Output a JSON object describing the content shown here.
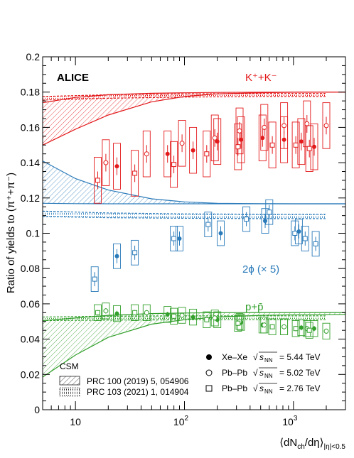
{
  "chart_data": {
    "type": "scatter",
    "experiment": "ALICE",
    "ylabel": "Ratio of yields to (π⁺+π⁻)",
    "xlabel_main": "⟨dN",
    "xlabel_sub1": "ch",
    "xlabel_mid": "/dη⟩",
    "xlabel_sub2": "|η|<0.5",
    "xscale": "log",
    "xlim": [
      5,
      3000
    ],
    "ylim": [
      0,
      0.2
    ],
    "xticks": [
      {
        "value": 10,
        "base": "10",
        "exp": ""
      },
      {
        "value": 100,
        "base": "10",
        "exp": "2"
      },
      {
        "value": 1000,
        "base": "10",
        "exp": "3"
      }
    ],
    "yticks": [
      "0",
      "0.02",
      "0.04",
      "0.06",
      "0.08",
      "0.1",
      "0.12",
      "0.14",
      "0.16",
      "0.18",
      "0.2"
    ],
    "colors": {
      "kaon": "#e31a1c",
      "phi": "#2b7bba",
      "proton": "#33a02c"
    },
    "species_labels": [
      {
        "id": "kaon",
        "text": "K⁺+K⁻"
      },
      {
        "id": "phi",
        "text": "2ϕ (× 5)"
      },
      {
        "id": "proton",
        "text": "p+p̄"
      }
    ],
    "legend": {
      "model_title": "CSM",
      "models": [
        {
          "label": "PRC 100 (2019) 5, 054906",
          "fill": "hatched"
        },
        {
          "label": "PRC 103 (2021) 1, 014904",
          "fill": "dotted"
        }
      ],
      "systems": [
        {
          "system": "Xe–Xe",
          "energy": "= 5.44 TeV",
          "marker": "filled-circle"
        },
        {
          "system": "Pb–Pb",
          "energy": "= 5.02 TeV",
          "marker": "open-circle"
        },
        {
          "system": "Pb–Pb",
          "energy": "= 2.76 TeV",
          "marker": "open-square"
        }
      ],
      "sqrt_label": "s",
      "sqrt_sub": "NN"
    },
    "series": [
      {
        "species": "kaon",
        "system": "Xe-Xe 5.44 TeV",
        "marker": "filled-circle",
        "x": [
          24,
          70,
          120,
          200,
          330,
          520,
          820,
          1180,
          1550
        ],
        "y": [
          0.138,
          0.145,
          0.147,
          0.152,
          0.153,
          0.154,
          0.153,
          0.152,
          0.149
        ]
      },
      {
        "species": "kaon",
        "system": "Pb-Pb 5.02 TeV",
        "marker": "open-circle",
        "x": [
          19,
          45,
          95,
          190,
          320,
          540,
          820,
          1330,
          2000
        ],
        "y": [
          0.14,
          0.145,
          0.151,
          0.154,
          0.158,
          0.16,
          0.161,
          0.162,
          0.161
        ]
      },
      {
        "species": "kaon",
        "system": "Pb-Pb 2.76 TeV",
        "marker": "open-square",
        "x": [
          16,
          35,
          80,
          160,
          310,
          640,
          1050,
          1400
        ],
        "y": [
          0.13,
          0.134,
          0.139,
          0.145,
          0.149,
          0.15,
          0.15,
          0.148
        ]
      },
      {
        "species": "phi",
        "system": "Xe-Xe 5.44 TeV",
        "marker": "filled-circle",
        "x": [
          24,
          90,
          215,
          550,
          1120
        ],
        "y": [
          0.087,
          0.097,
          0.1,
          0.107,
          0.101
        ]
      },
      {
        "species": "phi",
        "system": "Pb-Pb 2.76 TeV",
        "marker": "open-square",
        "x": [
          15,
          35,
          80,
          165,
          370,
          600,
          1030,
          1280,
          1600
        ],
        "y": [
          0.074,
          0.089,
          0.097,
          0.105,
          0.108,
          0.112,
          0.1,
          0.097,
          0.094
        ]
      },
      {
        "species": "proton",
        "system": "Xe-Xe 5.44 TeV",
        "marker": "filled-circle",
        "x": [
          24,
          70,
          120,
          200,
          330,
          520,
          820,
          1180,
          1550
        ],
        "y": [
          0.0545,
          0.054,
          0.0525,
          0.051,
          0.0495,
          0.048,
          0.047,
          0.0465,
          0.046
        ]
      },
      {
        "species": "proton",
        "system": "Pb-Pb 5.02 TeV",
        "marker": "open-circle",
        "x": [
          19,
          45,
          95,
          190,
          320,
          540,
          820,
          1330,
          2000
        ],
        "y": [
          0.056,
          0.055,
          0.0535,
          0.052,
          0.05,
          0.048,
          0.047,
          0.046,
          0.0445
        ]
      },
      {
        "species": "proton",
        "system": "Pb-Pb 2.76 TeV",
        "marker": "open-square",
        "x": [
          16,
          35,
          80,
          160,
          310,
          640,
          1050,
          1400
        ],
        "y": [
          0.055,
          0.055,
          0.053,
          0.051,
          0.049,
          0.047,
          0.046,
          0.045
        ]
      }
    ],
    "models": [
      {
        "id": "kaon-hatched",
        "species": "kaon",
        "fill": "hatched",
        "x": [
          5,
          10,
          20,
          50,
          100,
          200,
          500,
          1000,
          3000
        ],
        "upper": [
          0.174,
          0.177,
          0.1785,
          0.1793,
          0.1796,
          0.1798,
          0.1799,
          0.18,
          0.18
        ],
        "lower": [
          0.15,
          0.159,
          0.167,
          0.1745,
          0.1775,
          0.179,
          0.1796,
          0.1799,
          0.18
        ]
      },
      {
        "id": "kaon-dotted",
        "species": "kaon",
        "fill": "dotted",
        "x": [
          5,
          20,
          100,
          500,
          2000
        ],
        "upper": [
          0.1775,
          0.1785,
          0.179,
          0.1792,
          0.1792
        ],
        "lower": [
          0.1755,
          0.1765,
          0.1772,
          0.1775,
          0.1775
        ]
      },
      {
        "id": "phi-hatched",
        "species": "phi",
        "fill": "hatched",
        "x": [
          5,
          10,
          20,
          50,
          100,
          200,
          500,
          1000,
          3000
        ],
        "upper": [
          0.141,
          0.131,
          0.1245,
          0.1195,
          0.1178,
          0.117,
          0.1168,
          0.1167,
          0.1167
        ],
        "lower": [
          0.117,
          0.1168,
          0.1167,
          0.1167,
          0.1167,
          0.1167,
          0.1167,
          0.1167,
          0.1167
        ]
      },
      {
        "id": "phi-dotted",
        "species": "phi",
        "fill": "dotted",
        "x": [
          5,
          20,
          100,
          500,
          2000
        ],
        "upper": [
          0.1125,
          0.1115,
          0.111,
          0.1108,
          0.1108
        ],
        "lower": [
          0.1095,
          0.1088,
          0.1085,
          0.1083,
          0.1083
        ]
      },
      {
        "id": "proton-hatched",
        "species": "proton",
        "fill": "hatched",
        "x": [
          5,
          10,
          20,
          50,
          100,
          200,
          500,
          1000,
          3000
        ],
        "upper": [
          0.0505,
          0.052,
          0.0535,
          0.0545,
          0.0548,
          0.055,
          0.0551,
          0.0551,
          0.0551
        ],
        "lower": [
          0.0185,
          0.031,
          0.041,
          0.0485,
          0.051,
          0.0525,
          0.0535,
          0.0538,
          0.054
        ]
      },
      {
        "id": "proton-dotted",
        "species": "proton",
        "fill": "dotted",
        "x": [
          5,
          20,
          100,
          500,
          2000
        ],
        "upper": [
          0.0525,
          0.053,
          0.0532,
          0.0532,
          0.0532
        ],
        "lower": [
          0.0505,
          0.0508,
          0.051,
          0.051,
          0.051
        ]
      }
    ]
  }
}
